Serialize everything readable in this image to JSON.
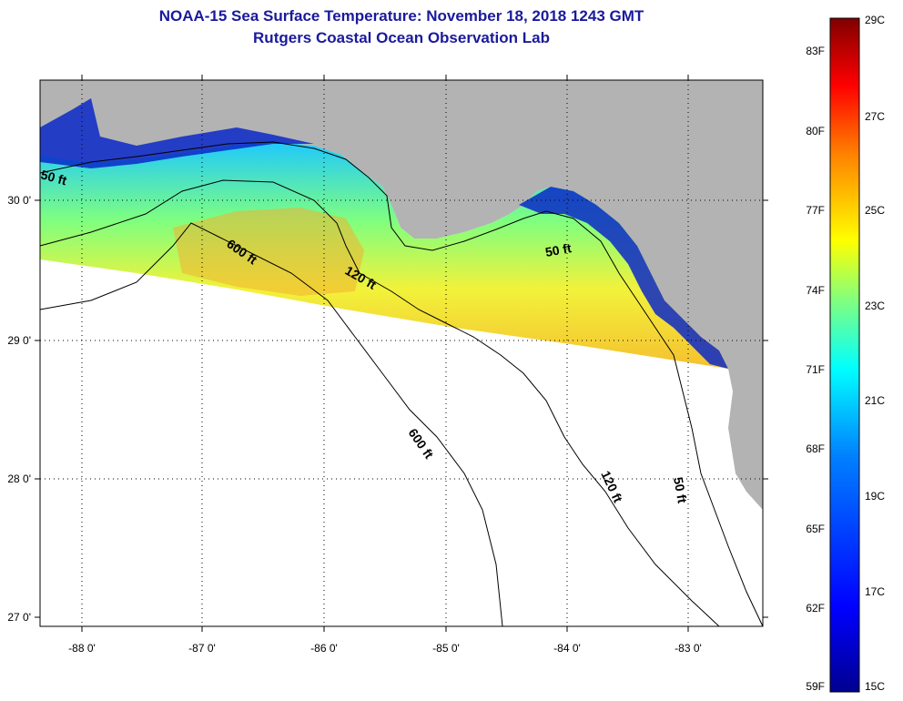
{
  "title": "NOAA-15 Sea Surface Temperature:  November 18, 2018 1243 GMT",
  "subtitle": "Rutgers Coastal Ocean Observation Lab",
  "map": {
    "lon_ticks": [
      "-88 0'",
      "-87 0'",
      "-86 0'",
      "-85 0'",
      "-84 0'",
      "-83 0'"
    ],
    "lat_ticks": [
      "30 0'",
      "29 0'",
      "28 0'",
      "27 0'"
    ],
    "contours": [
      {
        "label": "50 ft"
      },
      {
        "label": "600 ft"
      },
      {
        "label": "120 ft"
      },
      {
        "label": "50 ft"
      },
      {
        "label": "600 ft"
      },
      {
        "label": "120 ft"
      },
      {
        "label": "50 ft"
      }
    ],
    "land_color": "#b3b3b3",
    "nodata_color": "#ffffff"
  },
  "colorbar": {
    "fahrenheit_labels": [
      "83F",
      "80F",
      "77F",
      "74F",
      "71F",
      "68F",
      "65F",
      "62F",
      "59F"
    ],
    "celsius_labels": [
      "29C",
      "27C",
      "25C",
      "23C",
      "21C",
      "19C",
      "17C",
      "15C"
    ],
    "colors": [
      "#800000",
      "#ff0000",
      "#ff8000",
      "#ffff00",
      "#80ff80",
      "#00ffff",
      "#0080ff",
      "#0000ff",
      "#00008f"
    ]
  }
}
